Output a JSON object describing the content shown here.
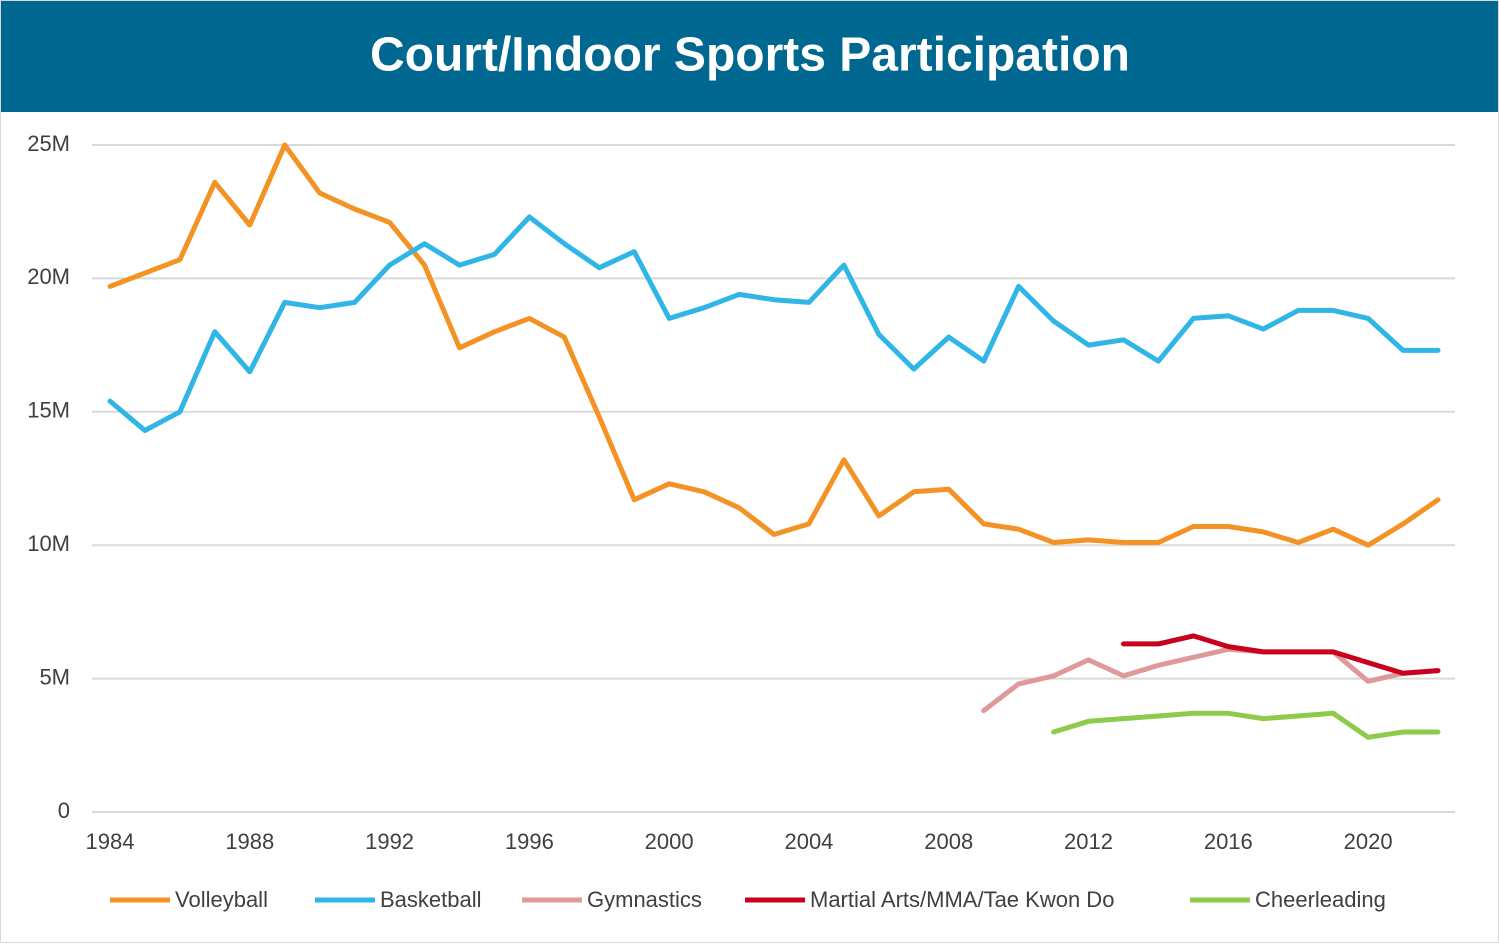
{
  "chart_data": {
    "type": "line",
    "title": "Court/Indoor Sports Participation",
    "x": [
      1984,
      1985,
      1986,
      1987,
      1988,
      1989,
      1990,
      1991,
      1992,
      1993,
      1994,
      1995,
      1996,
      1997,
      1998,
      1999,
      2000,
      2001,
      2002,
      2003,
      2004,
      2005,
      2006,
      2007,
      2008,
      2009,
      2010,
      2011,
      2012,
      2013,
      2014,
      2015,
      2016,
      2017,
      2018,
      2019,
      2020,
      2021,
      2022
    ],
    "xlim": [
      1984,
      2022
    ],
    "xticks": [
      1984,
      1988,
      1992,
      1996,
      2000,
      2004,
      2008,
      2012,
      2016,
      2020
    ],
    "ylim": [
      0,
      25000000
    ],
    "yticks": [
      0,
      {
        "value": 5000000,
        "label": "5M"
      },
      {
        "value": 10000000,
        "label": "10M"
      },
      {
        "value": 15000000,
        "label": "15M"
      },
      {
        "value": 20000000,
        "label": "20M"
      },
      {
        "value": 25000000,
        "label": "25M"
      }
    ],
    "grid": true,
    "legend": "bottom",
    "series": [
      {
        "name": "Volleyball",
        "color": "#f39325",
        "values": [
          19700000,
          20200000,
          20700000,
          23600000,
          22000000,
          25000000,
          23200000,
          22600000,
          22100000,
          20500000,
          17400000,
          18000000,
          18500000,
          17800000,
          14800000,
          11700000,
          12300000,
          12000000,
          11400000,
          10400000,
          10800000,
          13200000,
          11100000,
          12000000,
          12100000,
          10800000,
          10600000,
          10100000,
          10200000,
          10100000,
          10100000,
          10700000,
          10700000,
          10500000,
          10100000,
          10600000,
          10000000,
          10800000,
          11700000
        ]
      },
      {
        "name": "Basketball",
        "color": "#2fb5e6",
        "values": [
          15400000,
          14300000,
          15000000,
          18000000,
          16500000,
          19100000,
          18900000,
          19100000,
          20500000,
          21300000,
          20500000,
          20900000,
          22300000,
          21300000,
          20400000,
          21000000,
          18500000,
          18900000,
          19400000,
          19200000,
          19100000,
          20500000,
          17900000,
          16600000,
          17800000,
          16900000,
          19700000,
          18400000,
          17500000,
          17700000,
          16900000,
          18500000,
          18600000,
          18100000,
          18800000,
          18800000,
          18500000,
          17300000,
          17300000
        ]
      },
      {
        "name": "Gymnastics",
        "color": "#e0999b",
        "values": [
          null,
          null,
          null,
          null,
          null,
          null,
          null,
          null,
          null,
          null,
          null,
          null,
          null,
          null,
          null,
          null,
          null,
          null,
          null,
          null,
          null,
          null,
          null,
          null,
          null,
          3800000,
          4800000,
          5100000,
          5700000,
          5100000,
          5500000,
          5800000,
          6100000,
          6000000,
          6000000,
          6000000,
          4900000,
          5200000,
          5300000
        ]
      },
      {
        "name": "Martial Arts/MMA/Tae Kwon Do",
        "color": "#c8001e",
        "values": [
          null,
          null,
          null,
          null,
          null,
          null,
          null,
          null,
          null,
          null,
          null,
          null,
          null,
          null,
          null,
          null,
          null,
          null,
          null,
          null,
          null,
          null,
          null,
          null,
          null,
          null,
          null,
          null,
          null,
          6300000,
          6300000,
          6600000,
          6200000,
          6000000,
          6000000,
          6000000,
          5600000,
          5200000,
          5300000
        ]
      },
      {
        "name": "Cheerleading",
        "color": "#8ccc4a",
        "values": [
          null,
          null,
          null,
          null,
          null,
          null,
          null,
          null,
          null,
          null,
          null,
          null,
          null,
          null,
          null,
          null,
          null,
          null,
          null,
          null,
          null,
          null,
          null,
          null,
          null,
          null,
          null,
          3000000,
          3400000,
          3500000,
          3600000,
          3700000,
          3700000,
          3500000,
          3600000,
          3700000,
          2800000,
          3000000,
          3000000
        ]
      }
    ]
  }
}
